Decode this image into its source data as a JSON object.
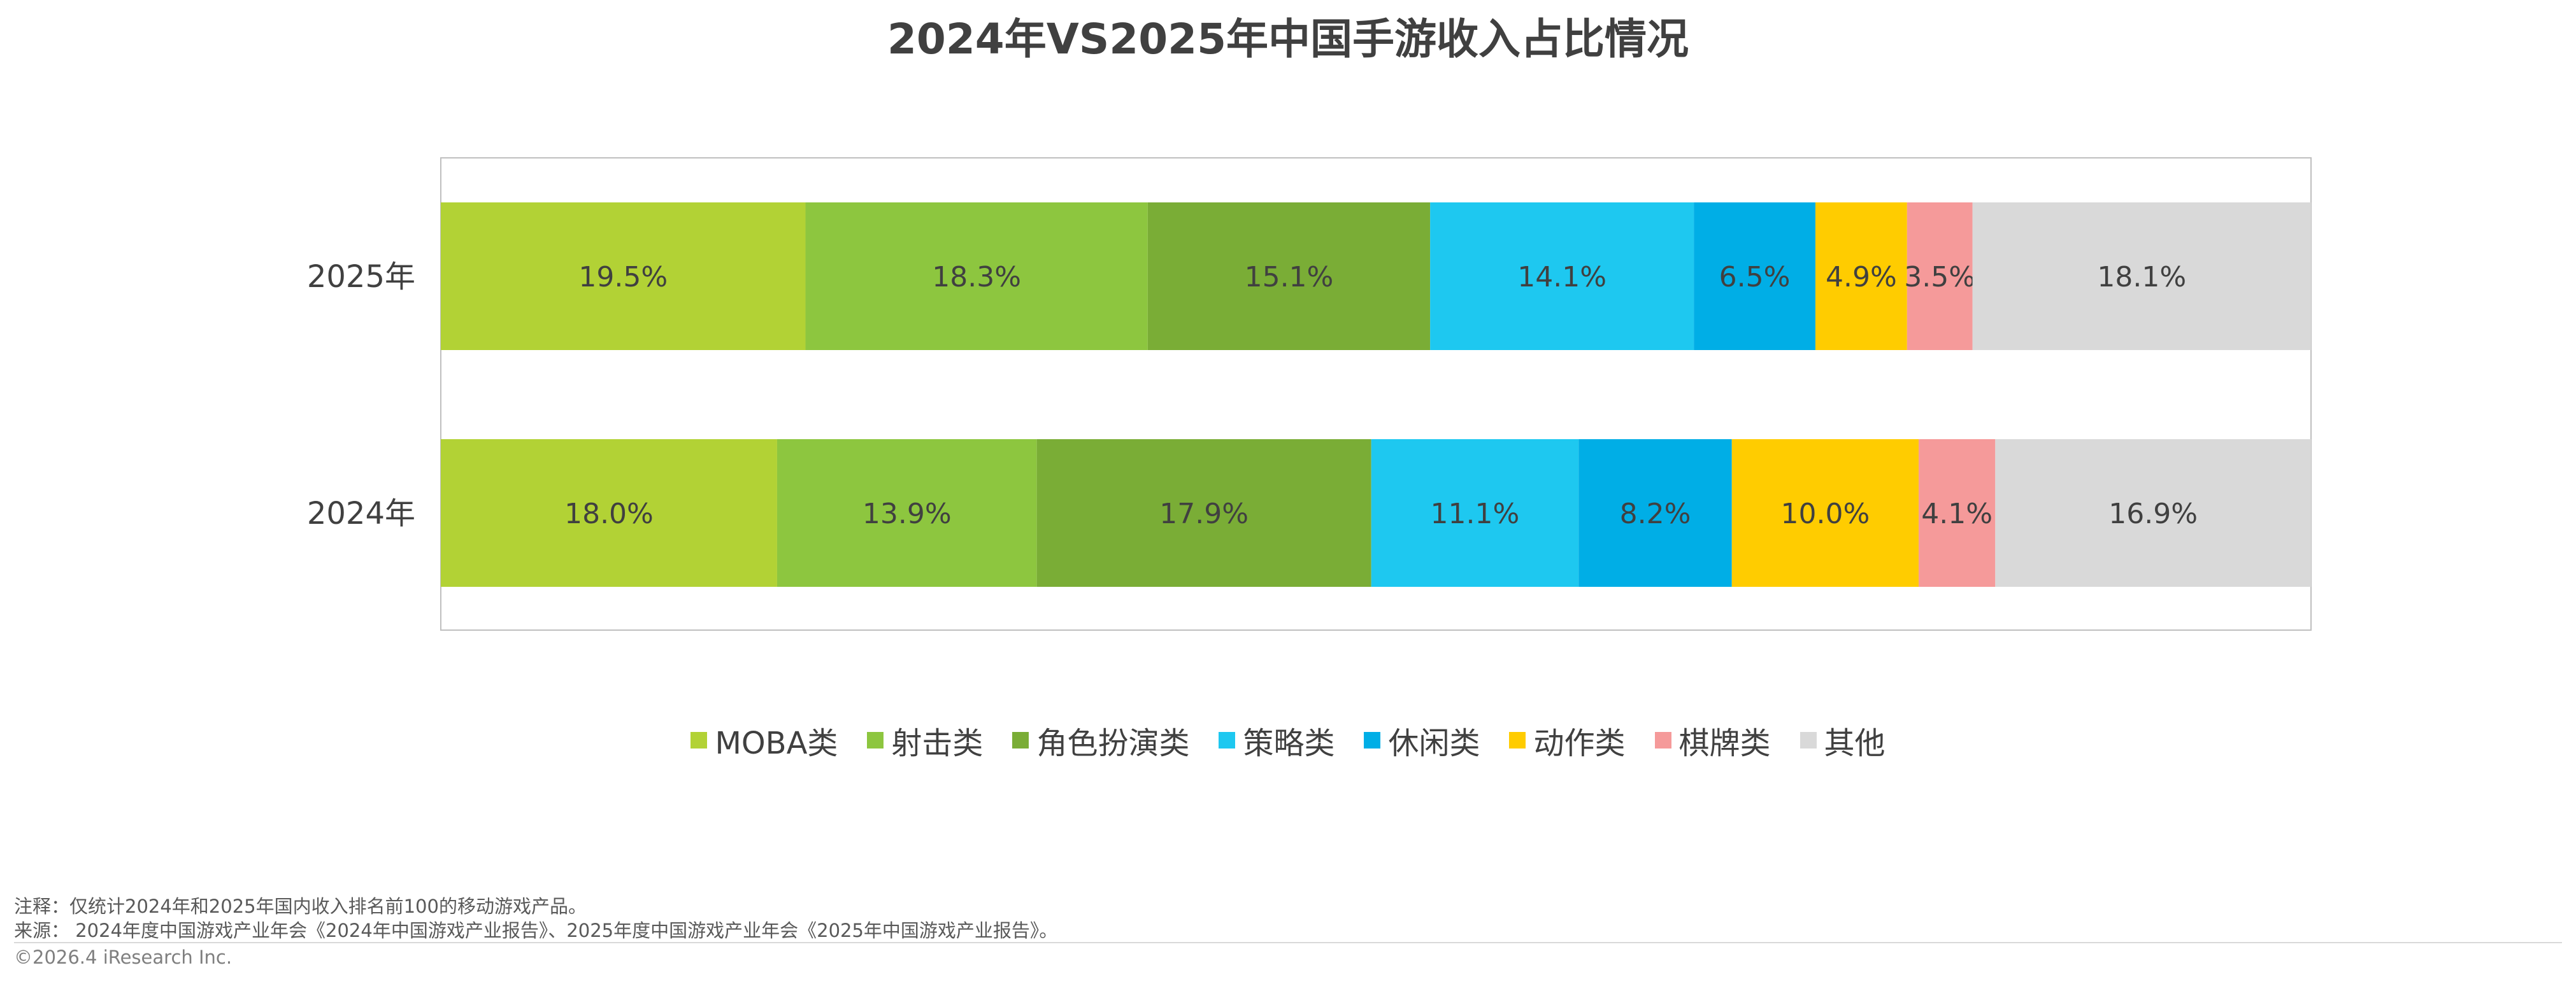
{
  "title": "2024年VS2025年中国手游收入占比情况",
  "chart_data": {
    "type": "bar",
    "orientation": "horizontal",
    "stacked": "100%",
    "title": "2024年VS2025年中国手游收入占比情况",
    "categories": [
      "2025年",
      "2024年"
    ],
    "series": [
      {
        "name": "MOBA类",
        "color": "#b2d235",
        "values": [
          19.5,
          18.0
        ]
      },
      {
        "name": "射击类",
        "color": "#8dc63f",
        "values": [
          18.3,
          13.9
        ]
      },
      {
        "name": "角色扮演类",
        "color": "#7aad36",
        "values": [
          15.1,
          17.9
        ]
      },
      {
        "name": "策略类",
        "color": "#1ec8f0",
        "values": [
          14.1,
          11.1
        ]
      },
      {
        "name": "休闲类",
        "color": "#00aee6",
        "values": [
          6.5,
          8.2
        ]
      },
      {
        "name": "动作类",
        "color": "#ffcc00",
        "values": [
          4.9,
          10.0
        ]
      },
      {
        "name": "棋牌类",
        "color": "#f59a9a",
        "values": [
          3.5,
          4.1
        ]
      },
      {
        "name": "其他",
        "color": "#d9d9d9",
        "values": [
          18.1,
          16.9
        ]
      }
    ],
    "value_labels": [
      [
        "19.5%",
        "18.3%",
        "15.1%",
        "14.1%",
        "6.5%",
        "4.9%",
        "3.5%",
        "18.1%"
      ],
      [
        "18.0%",
        "13.9%",
        "17.9%",
        "11.1%",
        "8.2%",
        "10.0%",
        "4.1%",
        "16.9%"
      ]
    ],
    "xlim": [
      0,
      100
    ],
    "legend_position": "bottom",
    "grid": false
  },
  "footnotes": {
    "note": "注释：仅统计2024年和2025年国内收入排名前100的移动游戏产品。",
    "source": "来源： 2024年度中国游戏产业年会《2024年中国游戏产业报告》、2025年度中国游戏产业年会《2025年中国游戏产业报告》。",
    "copyright": "©2026.4 iResearch Inc."
  }
}
